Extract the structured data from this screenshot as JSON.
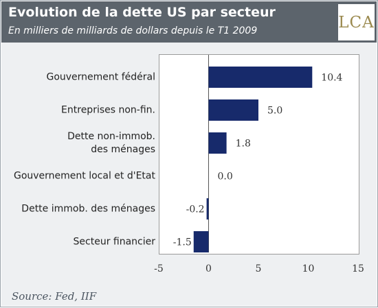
{
  "header": {
    "title": "Evolution de la dette US par secteur",
    "subtitle": "En milliers de milliards de dollars depuis le T1 2009",
    "logo_text": "LCA"
  },
  "source": "Source: Fed, IIF",
  "colors": {
    "bar": "#172a6b",
    "header_bg": "#5c646c",
    "logo": "#9b8a4f",
    "panel_bg": "#eef0f2"
  },
  "chart_data": {
    "type": "bar",
    "orientation": "horizontal",
    "title": "Evolution de la dette US par secteur",
    "subtitle": "En milliers de milliards de dollars depuis le T1 2009",
    "categories": [
      "Gouvernement fédéral",
      "Entreprises non-fin.",
      "Dette non-immob. des ménages",
      "Gouvernement local et d'Etat",
      "Dette immob. des ménages",
      "Secteur financier"
    ],
    "category_lines": [
      [
        "Gouvernement fédéral"
      ],
      [
        "Entreprises non-fin."
      ],
      [
        "Dette non-immob.",
        "des ménages"
      ],
      [
        "Gouvernement local et d'Etat"
      ],
      [
        "Dette immob. des ménages"
      ],
      [
        "Secteur financier"
      ]
    ],
    "values": [
      10.4,
      5.0,
      1.8,
      0.0,
      -0.2,
      -1.5
    ],
    "value_labels": [
      "10.4",
      "5.0",
      "1.8",
      "0.0",
      "-0.2",
      "-1.5"
    ],
    "xlim": [
      -5,
      15
    ],
    "xticks": [
      -5,
      0,
      5,
      10,
      15
    ],
    "grid": false,
    "legend": "none"
  }
}
